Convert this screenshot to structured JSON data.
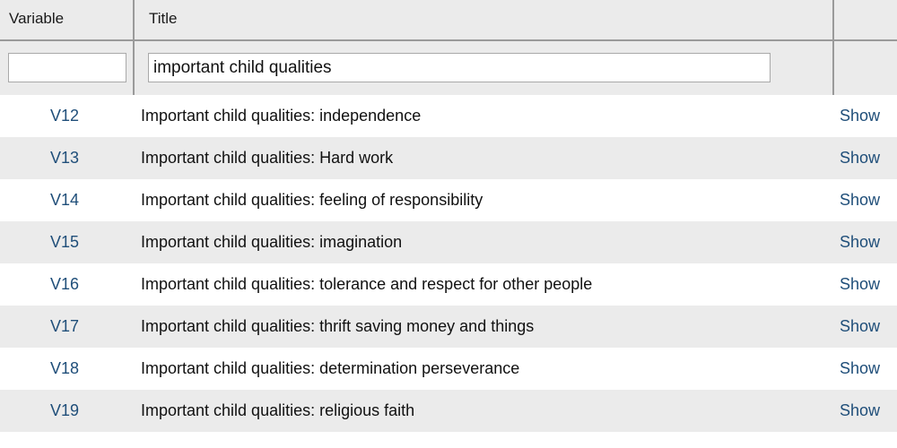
{
  "header": {
    "variable_label": "Variable",
    "title_label": "Title"
  },
  "filters": {
    "variable_value": "",
    "title_value": "important child qualities"
  },
  "rows": [
    {
      "variable": "V12",
      "title": "Important child qualities: independence",
      "action": "Show"
    },
    {
      "variable": "V13",
      "title": "Important child qualities: Hard work",
      "action": "Show"
    },
    {
      "variable": "V14",
      "title": "Important child qualities: feeling of responsibility",
      "action": "Show"
    },
    {
      "variable": "V15",
      "title": "Important child qualities: imagination",
      "action": "Show"
    },
    {
      "variable": "V16",
      "title": "Important child qualities: tolerance and respect for other people",
      "action": "Show"
    },
    {
      "variable": "V17",
      "title": "Important child qualities: thrift saving money and things",
      "action": "Show"
    },
    {
      "variable": "V18",
      "title": "Important child qualities: determination perseverance",
      "action": "Show"
    },
    {
      "variable": "V19",
      "title": "Important child qualities: religious faith",
      "action": "Show"
    }
  ],
  "colors": {
    "link": "#1f4e79",
    "stripe": "#ebebeb",
    "border": "#9a9a9a"
  }
}
